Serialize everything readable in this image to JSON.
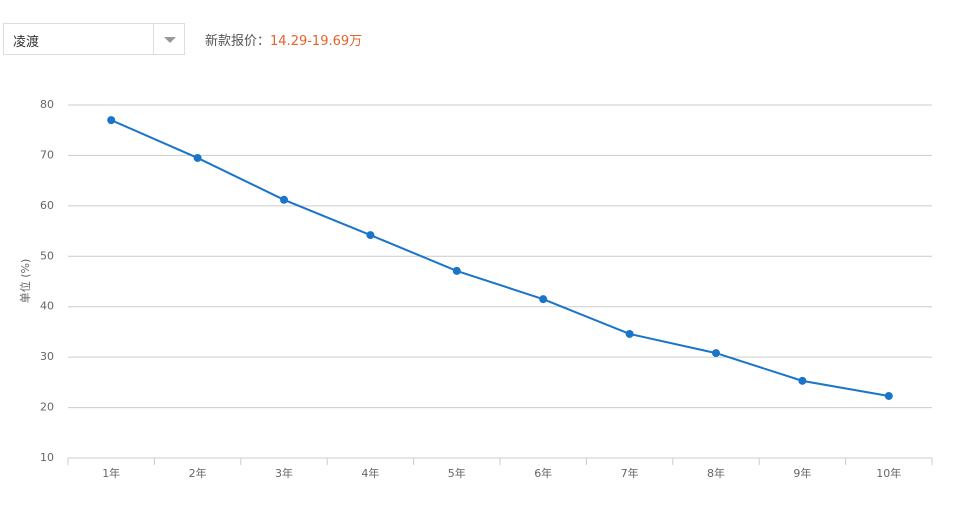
{
  "selector": {
    "value": "凌渡"
  },
  "price": {
    "label": "新款报价：",
    "value": "14.29-19.69万"
  },
  "chart_data": {
    "type": "line",
    "y_label": "单位 (%)",
    "categories": [
      "1年",
      "2年",
      "3年",
      "4年",
      "5年",
      "6年",
      "7年",
      "8年",
      "9年",
      "10年"
    ],
    "series": [
      {
        "values": [
          77.0,
          69.5,
          61.2,
          54.2,
          47.1,
          41.5,
          34.6,
          30.8,
          25.3,
          22.3
        ],
        "color": "#1a75c8"
      }
    ],
    "ylim": [
      10,
      80
    ],
    "yticks": [
      10,
      20,
      30,
      40,
      50,
      60,
      70,
      80
    ],
    "grid": true
  }
}
